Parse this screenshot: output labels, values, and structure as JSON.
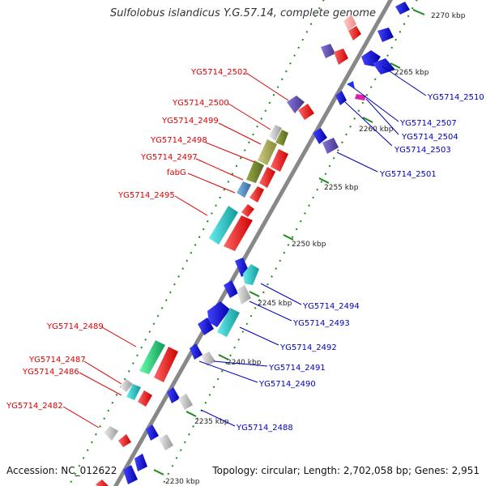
{
  "title": "Sulfolobus islandicus Y.G.57.14, complete genome",
  "accession_label": "Accession: NC_012622",
  "summary_label": "Topology: circular; Length: 2,702,058 bp; Genes: 2,951",
  "ticks": [
    {
      "label": "2270 kbp"
    },
    {
      "label": "2265 kbp"
    },
    {
      "label": "2260 kbp"
    },
    {
      "label": "2255 kbp"
    },
    {
      "label": "2250 kbp"
    },
    {
      "label": "2245 kbp"
    },
    {
      "label": "2240 kbp"
    },
    {
      "label": "2235 kbp"
    },
    {
      "label": "2230 kbp"
    }
  ],
  "left_labels": [
    {
      "text": "YG5714_2502",
      "color": "#dd0000"
    },
    {
      "text": "YG5714_2500",
      "color": "#dd0000"
    },
    {
      "text": "YG5714_2499",
      "color": "#dd0000"
    },
    {
      "text": "YG5714_2498",
      "color": "#dd0000"
    },
    {
      "text": "YG5714_2497",
      "color": "#dd0000"
    },
    {
      "text": "fabG",
      "color": "#dd0000"
    },
    {
      "text": "YG5714_2495",
      "color": "#dd0000"
    },
    {
      "text": "YG5714_2489",
      "color": "#dd0000"
    },
    {
      "text": "YG5714_2487",
      "color": "#dd0000"
    },
    {
      "text": "YG5714_2486",
      "color": "#dd0000"
    },
    {
      "text": "YG5714_2482",
      "color": "#dd0000"
    }
  ],
  "right_labels": [
    {
      "text": "YG5714_2510",
      "color": "#0000bb"
    },
    {
      "text": "YG5714_2507",
      "color": "#0000bb"
    },
    {
      "text": "YG5714_2504",
      "color": "#0000bb"
    },
    {
      "text": "YG5714_2503",
      "color": "#0000bb"
    },
    {
      "text": "YG5714_2501",
      "color": "#0000bb"
    },
    {
      "text": "YG5714_2494",
      "color": "#0000bb"
    },
    {
      "text": "YG5714_2493",
      "color": "#0000bb"
    },
    {
      "text": "YG5714_2492",
      "color": "#0000bb"
    },
    {
      "text": "YG5714_2491",
      "color": "#0000bb"
    },
    {
      "text": "YG5714_2490",
      "color": "#0000bb"
    },
    {
      "text": "YG5714_2488",
      "color": "#0000bb"
    }
  ],
  "colors": {
    "backbone": "#888888",
    "forward_gene": "#ee1111",
    "reverse_gene": "#1111dd",
    "tick_green": "#1a8a1a",
    "cyan_gene": "#22cccc",
    "purple_gene": "#6655bb",
    "olive_gene": "#aaaa55",
    "gray_gene": "#bbbbbb",
    "green_gene": "#33cc77",
    "magenta_gene": "#dd22aa"
  }
}
